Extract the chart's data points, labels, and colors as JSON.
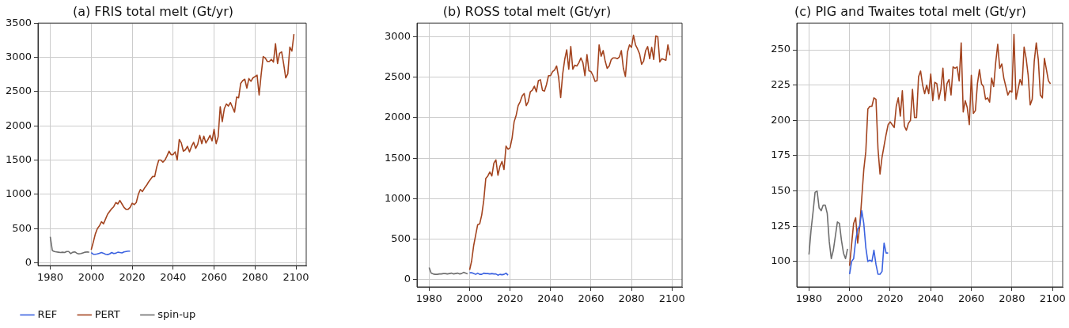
{
  "chart_data": [
    {
      "type": "line",
      "title": "(a) FRIS total melt (Gt/yr)",
      "xlim": [
        1974,
        2105
      ],
      "xticks": [
        1980,
        2000,
        2020,
        2040,
        2060,
        2080,
        2100
      ],
      "ylim": [
        -40,
        3500
      ],
      "yticks": [
        0,
        500,
        1000,
        1500,
        2000,
        2500,
        3000,
        3500
      ],
      "grid": true,
      "legend": "bottom left",
      "marker": "none",
      "line_style": "solid",
      "series": [
        {
          "name": "REF",
          "color": "#3b62e0",
          "x": [
            2000,
            2001,
            2002,
            2003,
            2004,
            2005,
            2006,
            2007,
            2008,
            2009,
            2010,
            2011,
            2012,
            2013,
            2014,
            2015,
            2016,
            2017,
            2018,
            2019
          ],
          "values": [
            150,
            125,
            125,
            130,
            140,
            150,
            140,
            125,
            120,
            130,
            150,
            135,
            140,
            155,
            150,
            145,
            160,
            165,
            170,
            170
          ]
        },
        {
          "name": "PERT",
          "color": "#a3441f",
          "x": [
            2000,
            2001,
            2002,
            2003,
            2004,
            2005,
            2006,
            2007,
            2008,
            2009,
            2010,
            2011,
            2012,
            2013,
            2014,
            2015,
            2016,
            2017,
            2018,
            2019,
            2020,
            2021,
            2022,
            2023,
            2024,
            2025,
            2026,
            2027,
            2028,
            2029,
            2030,
            2031,
            2032,
            2033,
            2034,
            2035,
            2036,
            2037,
            2038,
            2039,
            2040,
            2041,
            2042,
            2043,
            2044,
            2045,
            2046,
            2047,
            2048,
            2049,
            2050,
            2051,
            2052,
            2053,
            2054,
            2055,
            2056,
            2057,
            2058,
            2059,
            2060,
            2061,
            2062,
            2063,
            2064,
            2065,
            2066,
            2067,
            2068,
            2069,
            2070,
            2071,
            2072,
            2073,
            2074,
            2075,
            2076,
            2077,
            2078,
            2079,
            2080,
            2081,
            2082,
            2083,
            2084,
            2085,
            2086,
            2087,
            2088,
            2089,
            2090,
            2091,
            2092,
            2093,
            2094,
            2095,
            2096,
            2097,
            2098,
            2099
          ],
          "values": [
            190,
            300,
            420,
            500,
            540,
            600,
            570,
            640,
            710,
            750,
            790,
            820,
            880,
            860,
            910,
            860,
            810,
            780,
            780,
            810,
            870,
            850,
            880,
            1000,
            1070,
            1040,
            1090,
            1130,
            1180,
            1220,
            1260,
            1260,
            1400,
            1500,
            1500,
            1470,
            1500,
            1560,
            1630,
            1580,
            1580,
            1620,
            1500,
            1800,
            1750,
            1630,
            1650,
            1700,
            1620,
            1700,
            1760,
            1670,
            1730,
            1860,
            1740,
            1850,
            1750,
            1800,
            1860,
            1780,
            1950,
            1740,
            1840,
            2280,
            2060,
            2250,
            2320,
            2290,
            2340,
            2270,
            2200,
            2420,
            2410,
            2620,
            2660,
            2680,
            2550,
            2690,
            2650,
            2700,
            2720,
            2740,
            2450,
            2750,
            3010,
            2990,
            2940,
            2940,
            2970,
            2930,
            3200,
            2910,
            3060,
            3080,
            2900,
            2700,
            2760,
            3150,
            3090,
            3340
          ]
        },
        {
          "name": "spin-up",
          "color": "#6e6e6e",
          "x": [
            1980,
            1981,
            1982,
            1983,
            1984,
            1985,
            1986,
            1987,
            1988,
            1989,
            1990,
            1991,
            1992,
            1993,
            1994,
            1995,
            1996,
            1997,
            1998,
            1999
          ],
          "values": [
            380,
            180,
            165,
            160,
            155,
            150,
            155,
            150,
            165,
            165,
            135,
            155,
            160,
            140,
            130,
            135,
            145,
            155,
            160,
            155
          ]
        }
      ]
    },
    {
      "type": "line",
      "title": "(b) ROSS total melt (Gt/yr)",
      "xlim": [
        1974,
        2105
      ],
      "xticks": [
        1980,
        2000,
        2020,
        2040,
        2060,
        2080,
        2100
      ],
      "ylim": [
        -90,
        3170
      ],
      "yticks": [
        0,
        500,
        1000,
        1500,
        2000,
        2500,
        3000
      ],
      "grid": true,
      "marker": "none",
      "line_style": "solid",
      "series": [
        {
          "color": "#3b62e0",
          "x": [
            2000,
            2001,
            2002,
            2003,
            2004,
            2005,
            2006,
            2007,
            2008,
            2009,
            2010,
            2011,
            2012,
            2013,
            2014,
            2015,
            2016,
            2017,
            2018,
            2019
          ],
          "values": [
            85,
            85,
            75,
            65,
            80,
            65,
            65,
            80,
            75,
            75,
            70,
            75,
            70,
            70,
            55,
            65,
            60,
            65,
            80,
            55
          ]
        },
        {
          "color": "#a3441f",
          "x": [
            2000,
            2001,
            2002,
            2003,
            2004,
            2005,
            2006,
            2007,
            2008,
            2009,
            2010,
            2011,
            2012,
            2013,
            2014,
            2015,
            2016,
            2017,
            2018,
            2019,
            2020,
            2021,
            2022,
            2023,
            2024,
            2025,
            2026,
            2027,
            2028,
            2029,
            2030,
            2031,
            2032,
            2033,
            2034,
            2035,
            2036,
            2037,
            2038,
            2039,
            2040,
            2041,
            2042,
            2043,
            2044,
            2045,
            2046,
            2047,
            2048,
            2049,
            2050,
            2051,
            2052,
            2053,
            2054,
            2055,
            2056,
            2057,
            2058,
            2059,
            2060,
            2061,
            2062,
            2063,
            2064,
            2065,
            2066,
            2067,
            2068,
            2069,
            2070,
            2071,
            2072,
            2073,
            2074,
            2075,
            2076,
            2077,
            2078,
            2079,
            2080,
            2081,
            2082,
            2083,
            2084,
            2085,
            2086,
            2087,
            2088,
            2089,
            2090,
            2091,
            2092,
            2093,
            2094,
            2095,
            2096,
            2097,
            2098,
            2099
          ],
          "values": [
            120,
            230,
            420,
            550,
            680,
            690,
            800,
            980,
            1250,
            1280,
            1330,
            1280,
            1440,
            1480,
            1290,
            1400,
            1460,
            1360,
            1650,
            1610,
            1630,
            1750,
            1950,
            2030,
            2150,
            2200,
            2270,
            2300,
            2150,
            2200,
            2320,
            2340,
            2390,
            2320,
            2460,
            2470,
            2340,
            2330,
            2410,
            2520,
            2520,
            2570,
            2590,
            2640,
            2500,
            2250,
            2540,
            2720,
            2840,
            2600,
            2880,
            2600,
            2650,
            2640,
            2680,
            2740,
            2680,
            2520,
            2780,
            2580,
            2570,
            2520,
            2450,
            2460,
            2900,
            2760,
            2830,
            2700,
            2610,
            2640,
            2720,
            2740,
            2740,
            2730,
            2750,
            2830,
            2610,
            2510,
            2810,
            2900,
            2870,
            3020,
            2900,
            2850,
            2790,
            2660,
            2700,
            2830,
            2880,
            2730,
            2870,
            2720,
            3010,
            3000,
            2690,
            2730,
            2720,
            2710,
            2900,
            2770
          ]
        },
        {
          "color": "#6e6e6e",
          "x": [
            1980,
            1981,
            1982,
            1983,
            1984,
            1985,
            1986,
            1987,
            1988,
            1989,
            1990,
            1991,
            1992,
            1993,
            1994,
            1995,
            1996,
            1997,
            1998,
            1999
          ],
          "values": [
            150,
            80,
            70,
            65,
            65,
            70,
            70,
            75,
            75,
            70,
            75,
            80,
            70,
            75,
            80,
            70,
            75,
            90,
            80,
            70
          ]
        }
      ]
    },
    {
      "type": "line",
      "title": "(c) PIG and Twaites total melt (Gt/yr)",
      "xlim": [
        1974,
        2105
      ],
      "xticks": [
        1980,
        2000,
        2020,
        2040,
        2060,
        2080,
        2100
      ],
      "ylim": [
        82,
        269
      ],
      "yticks": [
        100,
        125,
        150,
        175,
        200,
        225,
        250
      ],
      "grid": true,
      "marker": "none",
      "line_style": "solid",
      "series": [
        {
          "color": "#3b62e0",
          "x": [
            2000,
            2001,
            2002,
            2003,
            2004,
            2005,
            2006,
            2007,
            2008,
            2009,
            2010,
            2011,
            2012,
            2013,
            2014,
            2015,
            2016,
            2017,
            2018,
            2019
          ],
          "values": [
            91,
            100,
            102,
            115,
            123,
            125,
            136,
            127,
            110,
            100,
            101,
            100,
            108,
            98,
            91,
            91,
            93,
            113,
            106,
            106
          ]
        },
        {
          "color": "#a3441f",
          "x": [
            2000,
            2001,
            2002,
            2003,
            2004,
            2005,
            2006,
            2007,
            2008,
            2009,
            2010,
            2011,
            2012,
            2013,
            2014,
            2015,
            2016,
            2017,
            2018,
            2019,
            2020,
            2021,
            2022,
            2023,
            2024,
            2025,
            2026,
            2027,
            2028,
            2029,
            2030,
            2031,
            2032,
            2033,
            2034,
            2035,
            2036,
            2037,
            2038,
            2039,
            2040,
            2041,
            2042,
            2043,
            2044,
            2045,
            2046,
            2047,
            2048,
            2049,
            2050,
            2051,
            2052,
            2053,
            2054,
            2055,
            2056,
            2057,
            2058,
            2059,
            2060,
            2061,
            2062,
            2063,
            2064,
            2065,
            2066,
            2067,
            2068,
            2069,
            2070,
            2071,
            2072,
            2073,
            2074,
            2075,
            2076,
            2077,
            2078,
            2079,
            2080,
            2081,
            2082,
            2083,
            2084,
            2085,
            2086,
            2087,
            2088,
            2089,
            2090,
            2091,
            2092,
            2093,
            2094,
            2095,
            2096,
            2097,
            2098,
            2099
          ],
          "values": [
            97,
            112,
            127,
            131,
            113,
            125,
            145,
            165,
            178,
            208,
            210,
            210,
            216,
            215,
            180,
            162,
            174,
            182,
            190,
            197,
            199,
            197,
            195,
            210,
            216,
            203,
            221,
            196,
            193,
            198,
            200,
            222,
            202,
            202,
            231,
            235,
            225,
            219,
            225,
            219,
            233,
            214,
            227,
            226,
            215,
            222,
            237,
            214,
            226,
            229,
            218,
            238,
            237,
            238,
            228,
            255,
            206,
            214,
            209,
            197,
            232,
            205,
            207,
            226,
            236,
            226,
            224,
            215,
            216,
            213,
            230,
            224,
            241,
            254,
            237,
            240,
            230,
            224,
            218,
            221,
            220,
            261,
            215,
            222,
            229,
            225,
            252,
            244,
            232,
            211,
            215,
            242,
            255,
            243,
            218,
            216,
            244,
            236,
            228,
            226
          ]
        },
        {
          "color": "#6e6e6e",
          "x": [
            1980,
            1981,
            1982,
            1983,
            1984,
            1985,
            1986,
            1987,
            1988,
            1989,
            1990,
            1991,
            1992,
            1993,
            1994,
            1995,
            1996,
            1997,
            1998,
            1999
          ],
          "values": [
            105,
            122,
            135,
            149,
            150,
            138,
            136,
            140,
            140,
            134,
            114,
            102,
            108,
            118,
            128,
            127,
            115,
            106,
            102,
            109
          ]
        }
      ]
    }
  ]
}
